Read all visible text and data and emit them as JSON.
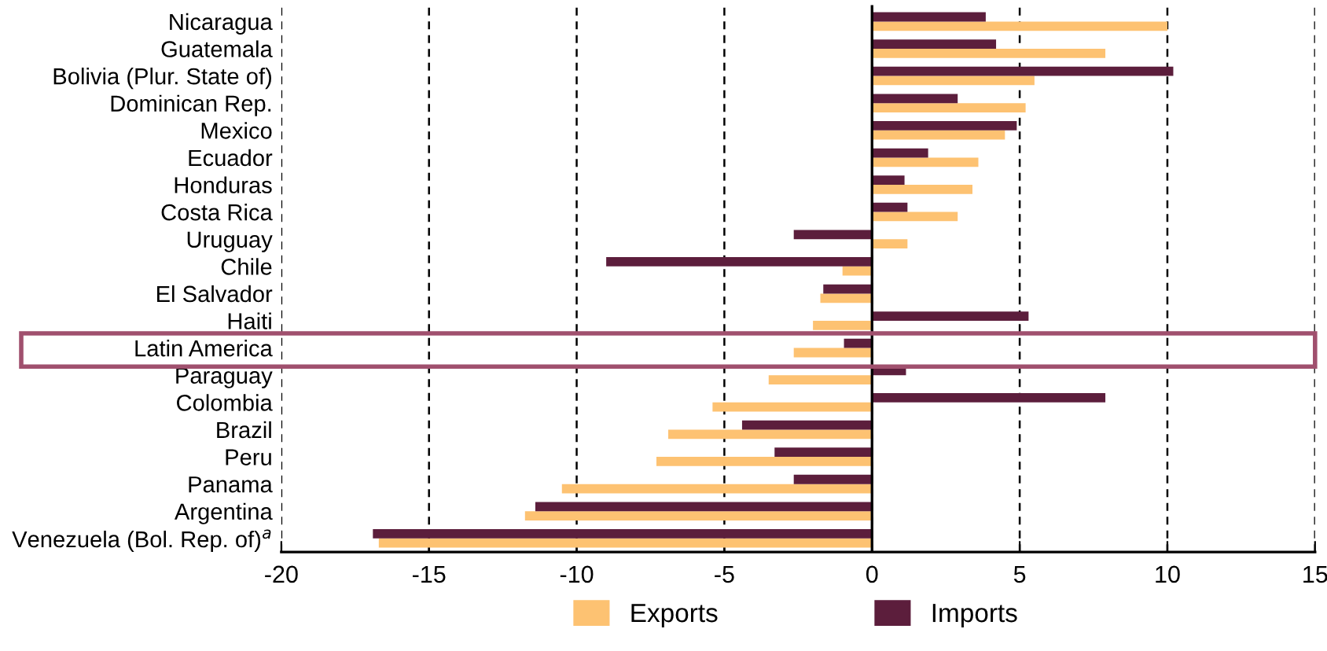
{
  "chart_data": {
    "type": "bar",
    "orientation": "horizontal",
    "categories": [
      "Nicaragua",
      "Guatemala",
      "Bolivia (Plur. State of)",
      "Dominican Rep.",
      "Mexico",
      "Ecuador",
      "Honduras",
      "Costa Rica",
      "Uruguay",
      "Chile",
      "El Salvador",
      "Haiti",
      "Latin America",
      "Paraguay",
      "Colombia",
      "Brazil",
      "Peru",
      "Panama",
      "Argentina",
      "Venezuela (Bol. Rep. of)$^{a}$"
    ],
    "series": [
      {
        "name": "Exports",
        "color": "#fdc272",
        "values": [
          10.0,
          7.9,
          5.5,
          5.2,
          4.5,
          3.6,
          3.4,
          2.9,
          1.2,
          -1.0,
          -1.75,
          -2.0,
          -2.65,
          -3.5,
          -5.4,
          -6.9,
          -7.3,
          -10.5,
          -11.75,
          -16.7
        ]
      },
      {
        "name": "Imports",
        "color": "#5c1e3c",
        "values": [
          3.85,
          4.2,
          10.2,
          2.9,
          4.9,
          1.9,
          1.1,
          1.2,
          -2.65,
          -9.0,
          -1.65,
          5.3,
          -0.95,
          1.15,
          7.9,
          -4.4,
          -3.3,
          -2.65,
          -11.4,
          -16.9
        ]
      }
    ],
    "xlim": [
      -20,
      15
    ],
    "xticks": [
      -20,
      -15,
      -10,
      -5,
      0,
      5,
      10,
      15
    ],
    "grid": "x",
    "legend": "bottom",
    "ref_lines": [
      {
        "axis": "x",
        "value": 0,
        "color": "#000000",
        "line_style": "solid"
      }
    ]
  }
}
